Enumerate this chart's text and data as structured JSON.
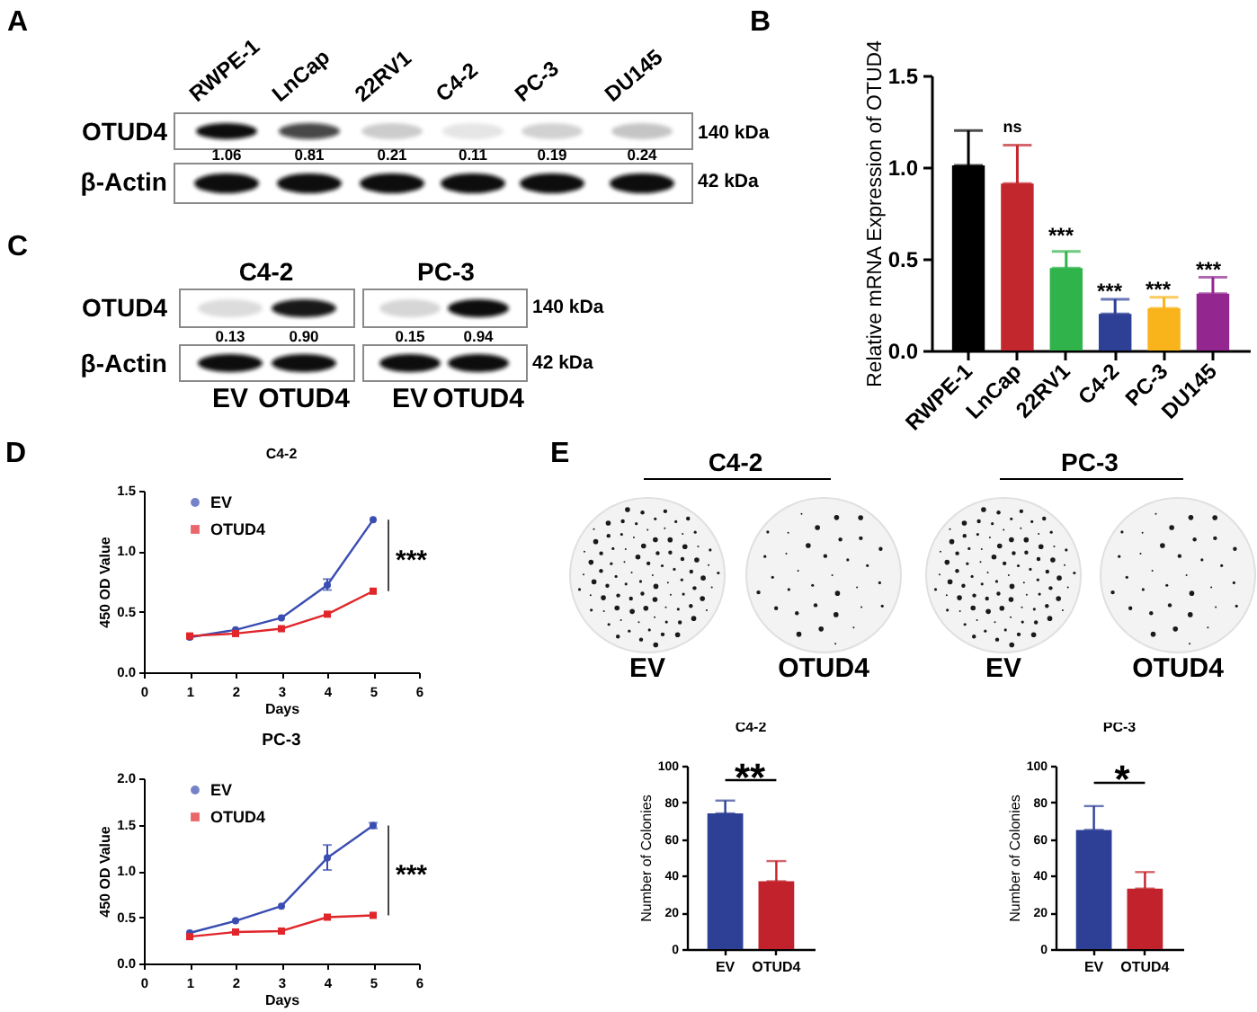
{
  "chart_data": [
    {
      "type": "other",
      "categories": [
        "RWPE-1",
        "LnCap",
        "22RV1",
        "C4-2",
        "PC-3",
        "DU145"
      ],
      "values": [
        1.06,
        0.81,
        0.21,
        0.11,
        0.19,
        0.24
      ],
      "value_labels": [
        "1.06",
        "0.81",
        "0.21",
        "0.11",
        "0.19",
        "0.24"
      ],
      "annotations": [
        "A",
        "OTUD4",
        "β-Actin",
        "140 kDa",
        "42 kDa"
      ]
    },
    {
      "type": "bar",
      "categories": [
        "RWPE-1",
        "LnCap",
        "22RV1",
        "C4-2",
        "PC-3",
        "DU145"
      ],
      "values": [
        1.01,
        0.91,
        0.45,
        0.2,
        0.23,
        0.31
      ],
      "colors": [
        "#000000",
        "#c1272d",
        "#2fb34a",
        "#2e3f96",
        "#f9b41b",
        "#93278f"
      ],
      "errors": [
        [
          1.01,
          1.2
        ],
        [
          0.91,
          1.12
        ],
        [
          0.45,
          0.54
        ],
        [
          0.2,
          0.28
        ],
        [
          0.23,
          0.29
        ],
        [
          0.31,
          0.4
        ]
      ],
      "ylabel": "Relative mRNA Expression of OTUD4",
      "ylim": [
        0,
        1.5
      ],
      "yticks": [
        {
          "value": 0,
          "label": "0.0"
        },
        0.5,
        {
          "value": 1,
          "label": "1.0"
        },
        1.5
      ],
      "annotations": [
        "B",
        "ns",
        "***",
        "***",
        "***",
        "***"
      ]
    },
    {
      "type": "other",
      "categories": [
        "EV",
        "OTUD4",
        "EV",
        "OTUD4"
      ],
      "values": [
        0.13,
        0.9,
        0.15,
        0.94
      ],
      "value_labels": [
        "0.13",
        "0.90",
        "0.15",
        "0.94"
      ],
      "annotations": [
        "C",
        "C4-2",
        "PC-3",
        "OTUD4",
        "β-Actin",
        "140 kDa",
        "42 kDa"
      ]
    },
    {
      "type": "line",
      "title": "C4-2",
      "x": [
        1,
        2,
        3,
        4,
        5
      ],
      "series": [
        {
          "name": "EV",
          "color": "#3a4db1",
          "marker": "circle",
          "values": [
            0.29,
            0.35,
            0.45,
            0.72,
            1.26
          ],
          "errors": [
            null,
            null,
            null,
            [
              0.68,
              0.77
            ],
            null
          ]
        },
        {
          "name": "OTUD4",
          "color": "#e0262b",
          "marker": "square",
          "values": [
            0.3,
            0.32,
            0.36,
            0.48,
            0.67
          ]
        }
      ],
      "xlabel": "Days",
      "ylabel": "450 OD Value",
      "xlim": [
        0,
        6
      ],
      "xticks": [
        0,
        1,
        2,
        3,
        4,
        5,
        6
      ],
      "ylim": [
        0,
        1.5
      ],
      "yticks": [
        {
          "value": 0,
          "label": "0.0"
        },
        0.5,
        {
          "value": 1,
          "label": "1.0"
        },
        1.5
      ],
      "legend": "top left",
      "annotations": [
        "D",
        "***"
      ]
    },
    {
      "type": "line",
      "title": "PC-3",
      "x": [
        1,
        2,
        3,
        4,
        5
      ],
      "series": [
        {
          "name": "EV",
          "color": "#3a4db1",
          "marker": "circle",
          "values": [
            0.33,
            0.46,
            0.62,
            1.14,
            1.49
          ],
          "errors": [
            null,
            null,
            null,
            [
              1.01,
              1.28
            ],
            [
              1.46,
              1.52
            ]
          ]
        },
        {
          "name": "OTUD4",
          "color": "#e0262b",
          "marker": "square",
          "values": [
            0.29,
            0.34,
            0.35,
            0.5,
            0.52
          ]
        }
      ],
      "xlabel": "Days",
      "ylabel": "450 OD Value",
      "xlim": [
        0,
        6
      ],
      "xticks": [
        0,
        1,
        2,
        3,
        4,
        5,
        6
      ],
      "ylim": [
        0,
        2
      ],
      "yticks": [
        {
          "value": 0,
          "label": "0.0"
        },
        0.5,
        {
          "value": 1,
          "label": "1.0"
        },
        1.5,
        {
          "value": 2,
          "label": "2.0"
        }
      ],
      "legend": "top left",
      "annotations": [
        "***"
      ]
    },
    {
      "type": "other",
      "categories": [
        "EV",
        "OTUD4",
        "EV",
        "OTUD4"
      ],
      "annotations": [
        "E",
        "C4-2",
        "PC-3"
      ]
    },
    {
      "type": "bar",
      "title": "C4-2",
      "categories": [
        "EV",
        "OTUD4"
      ],
      "values": [
        74,
        37
      ],
      "colors": [
        "#2e3f96",
        "#c1222b"
      ],
      "errors": [
        [
          74,
          81
        ],
        [
          37,
          48
        ]
      ],
      "ylabel": "Number of Colonies",
      "ylim": [
        0,
        100
      ],
      "yticks": [
        0,
        20,
        40,
        60,
        80,
        100
      ],
      "annotations": [
        "**"
      ]
    },
    {
      "type": "bar",
      "title": "PC-3",
      "categories": [
        "EV",
        "OTUD4"
      ],
      "values": [
        65,
        33
      ],
      "colors": [
        "#2e3f96",
        "#c1222b"
      ],
      "errors": [
        [
          65,
          78
        ],
        [
          33,
          42
        ]
      ],
      "ylabel": "Number of Colonies",
      "ylim": [
        0,
        100
      ],
      "yticks": [
        0,
        20,
        40,
        60,
        80,
        100
      ],
      "annotations": [
        "*"
      ]
    }
  ]
}
